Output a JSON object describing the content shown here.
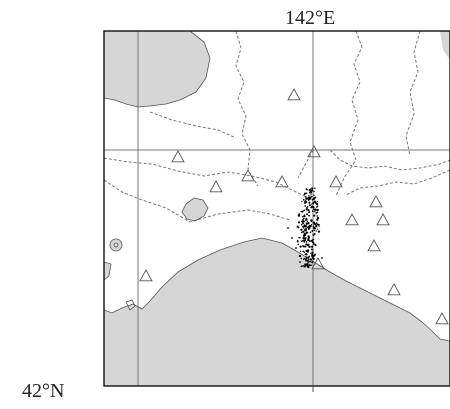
{
  "labels": {
    "longitude": "142°E",
    "latitude": "42°N"
  },
  "colors": {
    "land": "#d6d6d6",
    "coast": "#555555",
    "frame": "#111111",
    "grid": "#777777",
    "boundary": "#777777",
    "station": "#555555",
    "epicenter": "#000000"
  },
  "marker_types": {
    "station": "open-triangle",
    "epicenter": "dot"
  }
}
